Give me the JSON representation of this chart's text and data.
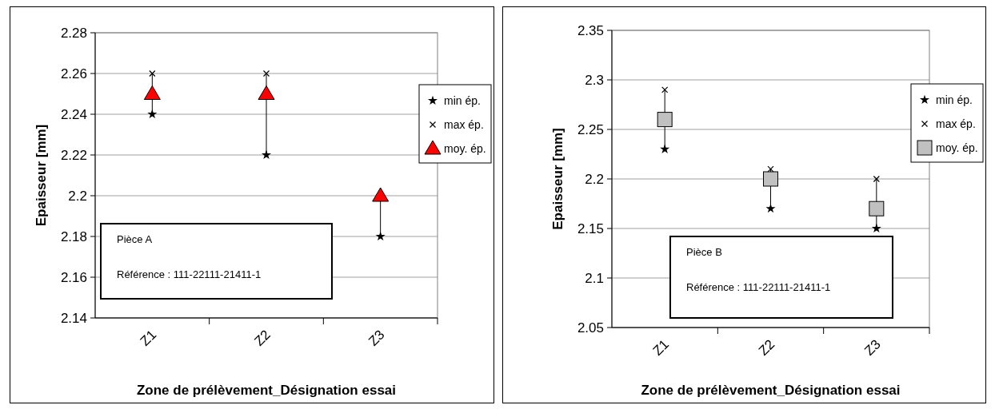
{
  "chart_data": [
    {
      "type": "scatter",
      "xlabel": "Zone de prélèvement_Désignation essai",
      "ylabel": "Epaisseur [mm]",
      "categories": [
        "Z1",
        "Z2",
        "Z3"
      ],
      "ylim": [
        2.14,
        2.28
      ],
      "yticks": [
        2.14,
        2.16,
        2.18,
        2.2,
        2.22,
        2.24,
        2.26,
        2.28
      ],
      "grid": "y",
      "legend": "right",
      "series": [
        {
          "name": "min ép.",
          "color": "#000000",
          "marker": "star",
          "values": [
            2.24,
            2.22,
            2.18
          ]
        },
        {
          "name": "max ép.",
          "color": "#000000",
          "marker": "cross",
          "values": [
            2.26,
            2.26,
            null
          ]
        },
        {
          "name": "moy. ép.",
          "color": "#ff0000",
          "marker": "triangle",
          "values": [
            2.25,
            2.25,
            2.2
          ]
        }
      ],
      "annotations": [
        "Pièce A",
        "Référence : 111-22111-21411-1"
      ]
    },
    {
      "type": "scatter",
      "xlabel": "Zone de prélèvement_Désignation essai",
      "ylabel": "Epaisseur [mm]",
      "categories": [
        "Z1",
        "Z2",
        "Z3"
      ],
      "ylim": [
        2.05,
        2.35
      ],
      "yticks": [
        2.05,
        2.1,
        2.15,
        2.2,
        2.25,
        2.3,
        2.35
      ],
      "grid": "y",
      "legend": "right",
      "series": [
        {
          "name": "min ép.",
          "color": "#000000",
          "marker": "star",
          "values": [
            2.23,
            2.17,
            2.15
          ]
        },
        {
          "name": "max ép.",
          "color": "#000000",
          "marker": "cross",
          "values": [
            2.29,
            2.21,
            2.2
          ]
        },
        {
          "name": "moy. ép.",
          "color": "#c0c0c0",
          "marker": "square",
          "values": [
            2.26,
            2.2,
            2.17
          ]
        }
      ],
      "annotations": [
        "Pièce B",
        "Référence : 111-22111-21411-1"
      ]
    }
  ]
}
